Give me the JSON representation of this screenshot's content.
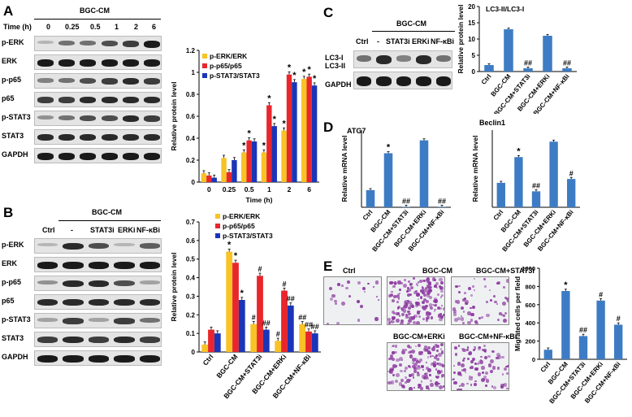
{
  "panel_letters": [
    "A",
    "B",
    "C",
    "D",
    "E"
  ],
  "A": {
    "group": "BGC-CM",
    "time_header": "Time (h)",
    "times": [
      "0",
      "0.25",
      "0.5",
      "1",
      "2",
      "6"
    ],
    "bands": [
      "p-ERK",
      "ERK",
      "p-p65",
      "p65",
      "p-STAT3",
      "STAT3",
      "GAPDH"
    ]
  },
  "B": {
    "group": "BGC-CM",
    "lanes": [
      "Ctrl",
      "-",
      "STAT3i",
      "ERKi",
      "NF-κBi"
    ],
    "bands": [
      "p-ERK",
      "ERK",
      "p-p65",
      "p65",
      "p-STAT3",
      "STAT3",
      "GAPDH"
    ]
  },
  "C": {
    "group": "BGC-CM",
    "lanes": [
      "Ctrl",
      "-",
      "STAT3i",
      "ERKi",
      "NF-κBi"
    ],
    "bands": [
      "LC3-I",
      "LC3-II",
      "GAPDH"
    ]
  },
  "E": {
    "images": [
      "Ctrl",
      "BGC-CM",
      "BGC-CM+STAT3i",
      "BGC-CM+ERKi",
      "BGC-CM+NF-κBi"
    ]
  },
  "colors": {
    "erk": "#f7c325",
    "p65": "#e8262c",
    "stat3": "#1a35b8",
    "bar": "#3d7cc4"
  },
  "chart_data": [
    {
      "id": "A",
      "type": "bar",
      "ylabel": "Relative protein level",
      "xlabel": "Time (h)",
      "ylim": [
        0,
        1.2
      ],
      "yticks": [
        "0",
        "0.2",
        "0.4",
        "0.6",
        "0.8",
        "1",
        "1.2"
      ],
      "categories": [
        "0",
        "0.25",
        "0.5",
        "1",
        "2",
        "6"
      ],
      "series": [
        {
          "name": "p-ERK/ERK",
          "values": [
            0.08,
            0.22,
            0.27,
            0.27,
            0.47,
            0.94
          ]
        },
        {
          "name": "p-p65/p65",
          "values": [
            0.06,
            0.09,
            0.38,
            0.7,
            0.98,
            0.96
          ]
        },
        {
          "name": "p-STAT3/STAT3",
          "values": [
            0.04,
            0.2,
            0.37,
            0.51,
            0.91,
            0.88
          ]
        }
      ],
      "annotations": [
        {
          "cat": 2,
          "series": 0,
          "text": "*"
        },
        {
          "cat": 2,
          "series": 1,
          "text": "*"
        },
        {
          "cat": 3,
          "series": 0,
          "text": "*"
        },
        {
          "cat": 3,
          "series": 1,
          "text": "*"
        },
        {
          "cat": 3,
          "series": 2,
          "text": "*"
        },
        {
          "cat": 4,
          "series": 0,
          "text": "*"
        },
        {
          "cat": 4,
          "series": 1,
          "text": "*"
        },
        {
          "cat": 4,
          "series": 2,
          "text": "*"
        },
        {
          "cat": 5,
          "series": 0,
          "text": "*"
        },
        {
          "cat": 5,
          "series": 1,
          "text": "*"
        },
        {
          "cat": 5,
          "series": 2,
          "text": "*"
        }
      ],
      "legend_position": "top-left"
    },
    {
      "id": "B",
      "type": "bar",
      "ylabel": "Relative protein level",
      "ylim": [
        0,
        0.7
      ],
      "yticks": [
        "0",
        "0.1",
        "0.2",
        "0.3",
        "0.4",
        "0.5",
        "0.6",
        "0.7"
      ],
      "categories": [
        "Ctrl",
        "BGC-CM",
        "BGC-CM+STAT3i",
        "BGC-CM+ERKi",
        "BGC-CM+NF-κBi"
      ],
      "series": [
        {
          "name": "p-ERK/ERK",
          "values": [
            0.04,
            0.54,
            0.15,
            0.06,
            0.15
          ]
        },
        {
          "name": "p-p65/p65",
          "values": [
            0.12,
            0.48,
            0.41,
            0.33,
            0.11
          ]
        },
        {
          "name": "p-STAT3/STAT3",
          "values": [
            0.1,
            0.28,
            0.12,
            0.25,
            0.1
          ]
        }
      ],
      "annotations": [
        {
          "cat": 1,
          "series": 0,
          "text": "*"
        },
        {
          "cat": 1,
          "series": 1,
          "text": "*"
        },
        {
          "cat": 1,
          "series": 2,
          "text": "*"
        },
        {
          "cat": 2,
          "series": 0,
          "text": "#"
        },
        {
          "cat": 2,
          "series": 1,
          "text": "#"
        },
        {
          "cat": 2,
          "series": 2,
          "text": "##"
        },
        {
          "cat": 3,
          "series": 0,
          "text": "#"
        },
        {
          "cat": 3,
          "series": 1,
          "text": "#"
        },
        {
          "cat": 3,
          "series": 2,
          "text": "##"
        },
        {
          "cat": 4,
          "series": 0,
          "text": "##"
        },
        {
          "cat": 4,
          "series": 1,
          "text": "##"
        },
        {
          "cat": 4,
          "series": 2,
          "text": "##"
        }
      ],
      "legend_position": "top-right"
    },
    {
      "id": "C",
      "type": "bar",
      "title": "LC3-II/LC3-I",
      "ylabel": "Relative protein level",
      "ylim": [
        0,
        20
      ],
      "yticks": [
        "0",
        "5",
        "10",
        "15",
        "20"
      ],
      "categories": [
        "Ctrl",
        "BGC-CM",
        "BGC-CM+STAT3i",
        "BGC-CM+ERKi",
        "BGC-CM+NF-κBi"
      ],
      "values": [
        2.0,
        13.0,
        1.0,
        11.0,
        1.0
      ],
      "annotations": [
        {
          "cat": 2,
          "text": "##"
        },
        {
          "cat": 4,
          "text": "##"
        }
      ]
    },
    {
      "id": "D1",
      "type": "bar",
      "title": "ATG7",
      "ylabel": "Relative mRNA level",
      "ylim": [
        0,
        4.5
      ],
      "categories": [
        "Ctrl",
        "BGC-CM",
        "BGC-CM+STAT3i",
        "BGC-CM+ERKi",
        "BGC-CM+NF-κBi"
      ],
      "values": [
        1.0,
        3.15,
        0.03,
        3.9,
        0.03
      ],
      "annotations": [
        {
          "cat": 1,
          "text": "*"
        },
        {
          "cat": 2,
          "text": "##"
        },
        {
          "cat": 4,
          "text": "##"
        }
      ]
    },
    {
      "id": "D2",
      "type": "bar",
      "title": "Beclin1",
      "ylabel": "Relative mRNA level",
      "ylim": [
        0,
        3.0
      ],
      "categories": [
        "Ctrl",
        "BGC-CM",
        "BGC-CM+STAT3i",
        "BGC-CM+ERKi",
        "BGC-CM+NF-κBi"
      ],
      "values": [
        0.95,
        1.95,
        0.62,
        2.55,
        1.1
      ],
      "annotations": [
        {
          "cat": 1,
          "text": "*"
        },
        {
          "cat": 2,
          "text": "##"
        },
        {
          "cat": 4,
          "text": "#"
        }
      ]
    },
    {
      "id": "E",
      "type": "bar",
      "ylabel": "Migrated cells per field",
      "ylim": [
        0,
        1000
      ],
      "yticks": [
        "0",
        "200",
        "400",
        "600",
        "800",
        "1000"
      ],
      "categories": [
        "Ctrl",
        "BGC-CM",
        "BGC-CM+STAT3i",
        "BGC-CM+ERKi",
        "BGC-CM+NF-κBi"
      ],
      "values": [
        105,
        750,
        255,
        645,
        380
      ],
      "annotations": [
        {
          "cat": 1,
          "text": "*"
        },
        {
          "cat": 2,
          "text": "##"
        },
        {
          "cat": 3,
          "text": "#"
        },
        {
          "cat": 4,
          "text": "#"
        }
      ]
    }
  ]
}
